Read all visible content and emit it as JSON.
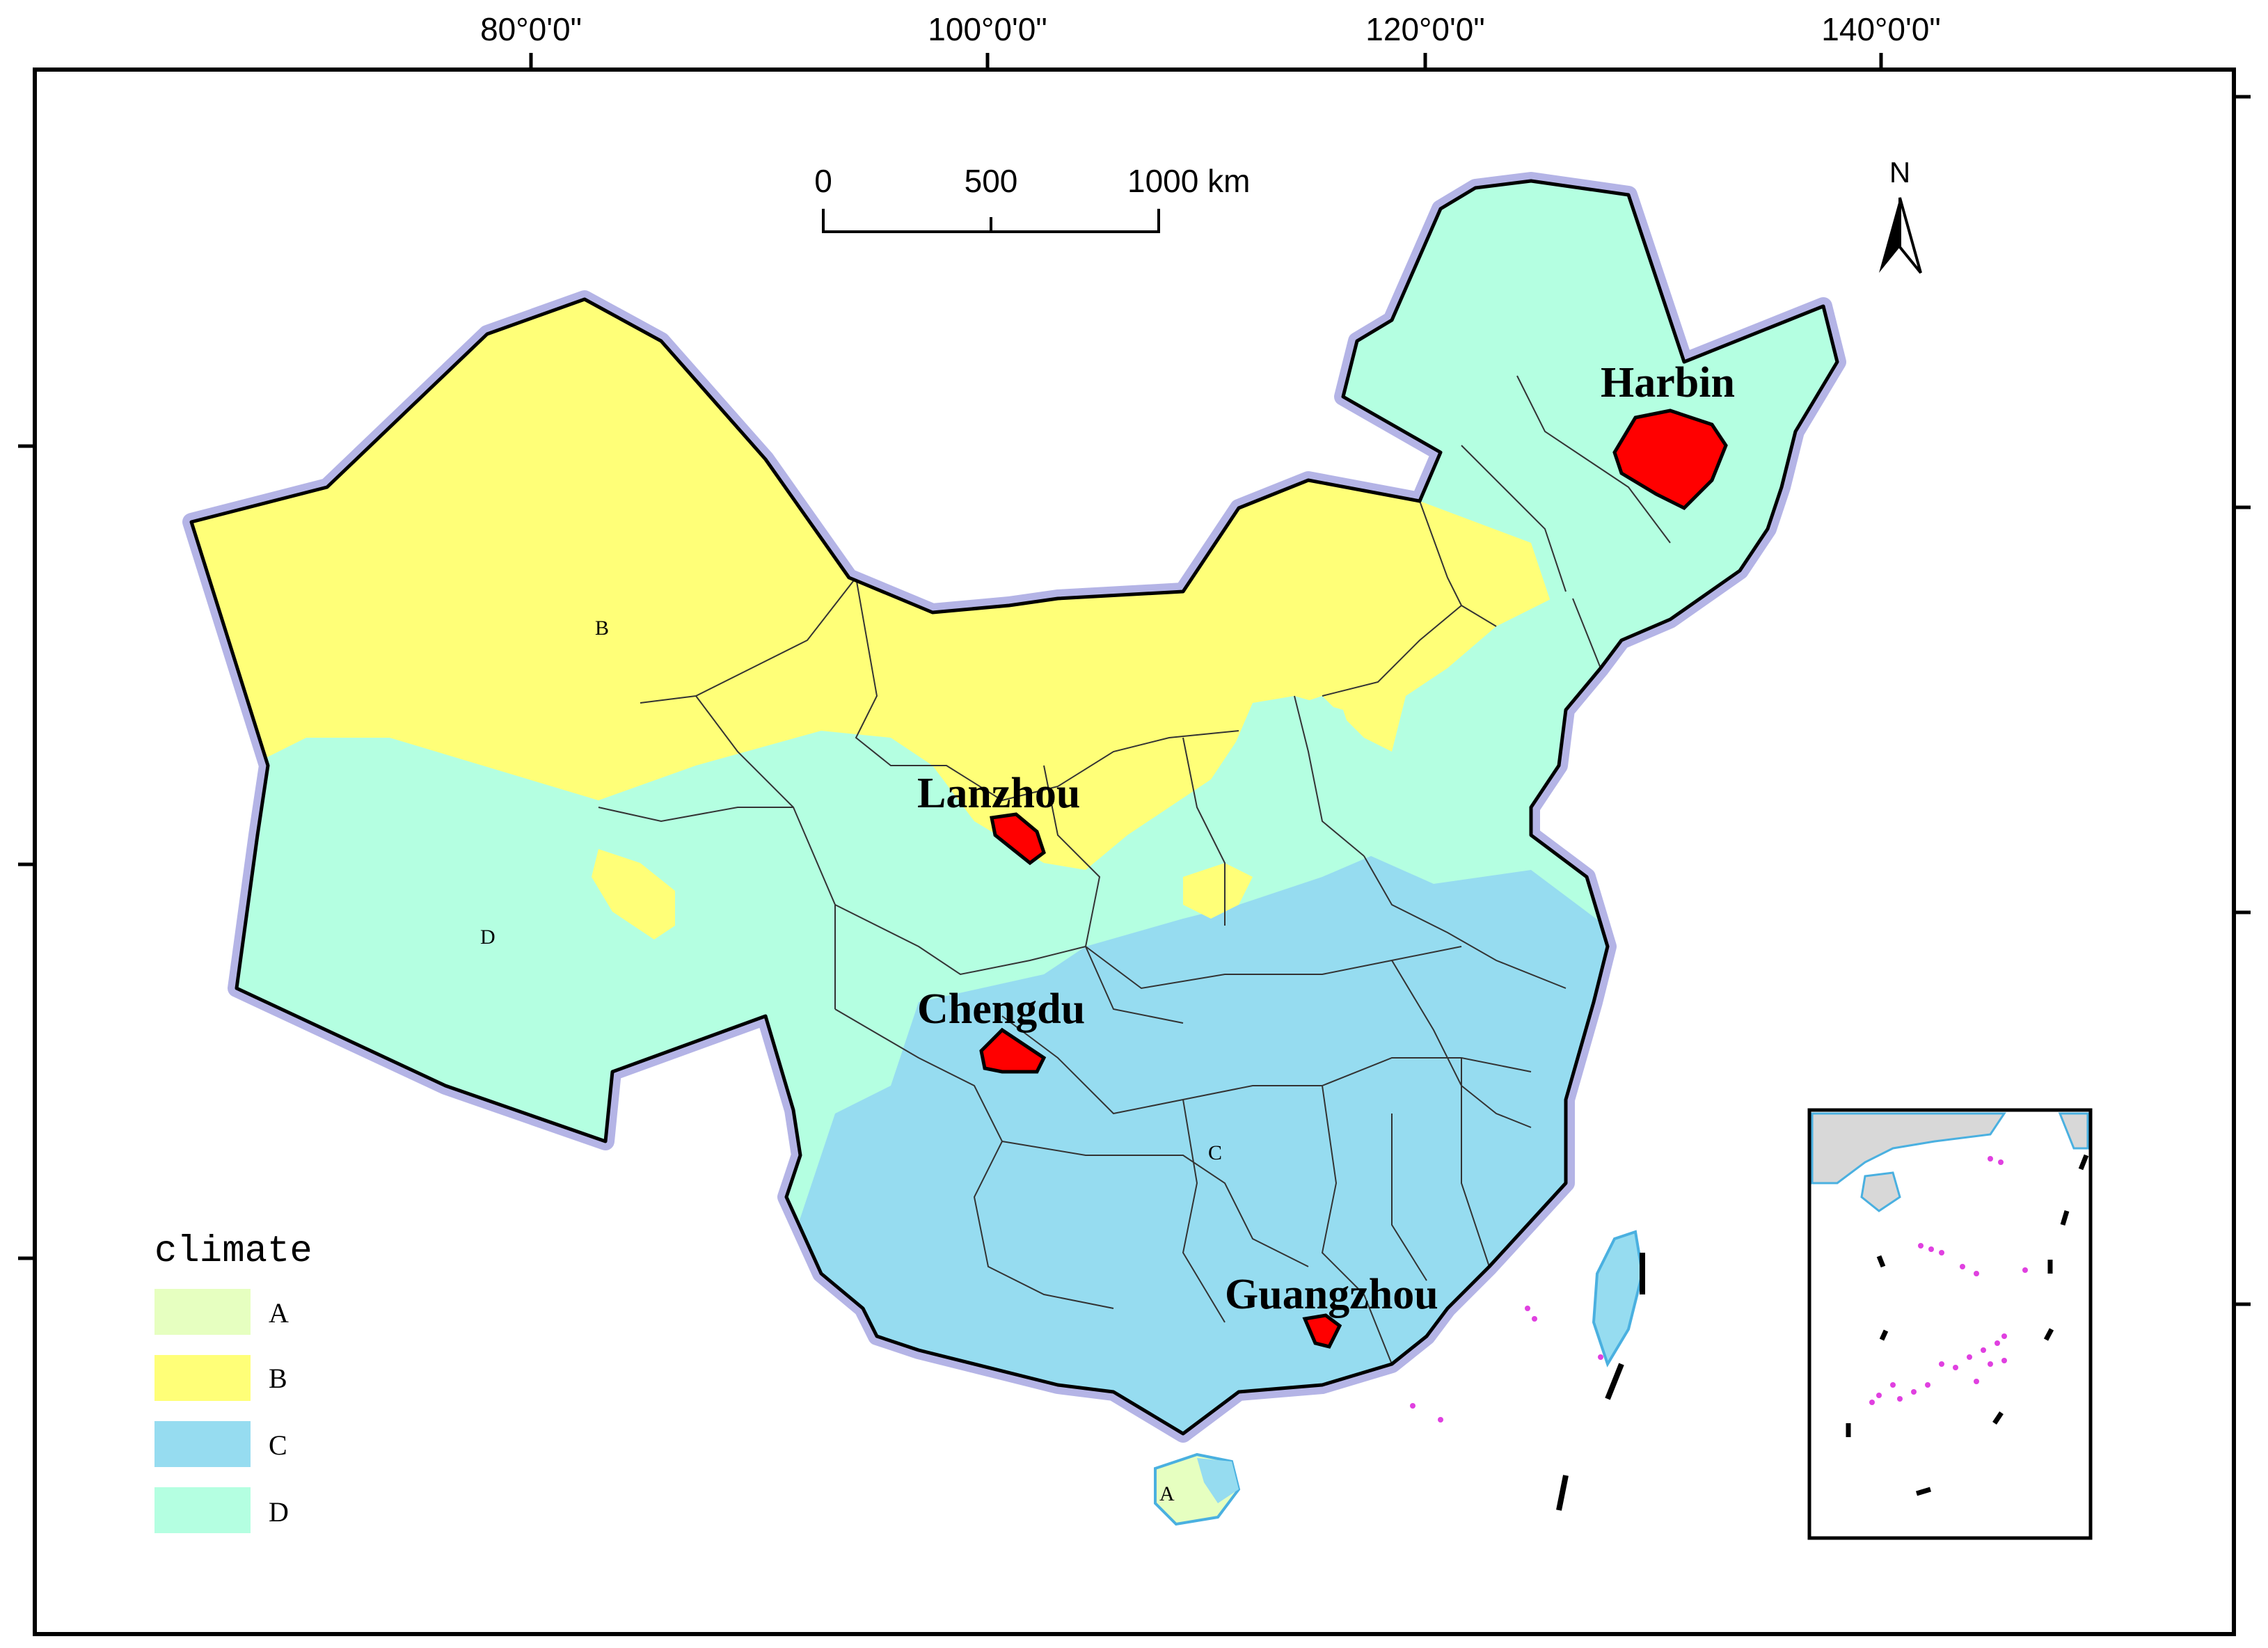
{
  "graticule": {
    "top_labels": [
      "80°0'0\"",
      "100°0'0\"",
      "120°0'0\"",
      "140°0'0\""
    ]
  },
  "scale_bar": {
    "labels": [
      "0",
      "500",
      "1000 km"
    ]
  },
  "north_arrow": {
    "label": "N"
  },
  "cities": {
    "harbin": "Harbin",
    "lanzhou": "Lanzhou",
    "chengdu": "Chengdu",
    "guangzhou": "Guangzhou"
  },
  "zones": {
    "b": "B",
    "d": "D",
    "c": "C",
    "a": "A"
  },
  "legend": {
    "title": "climate",
    "items": [
      {
        "label": "A",
        "color": "#e6ffc0"
      },
      {
        "label": "B",
        "color": "#ffff78"
      },
      {
        "label": "C",
        "color": "#96dcf0"
      },
      {
        "label": "D",
        "color": "#b4ffe1"
      }
    ]
  },
  "colors": {
    "city_fill": "#ff0000",
    "border_halo": "#b4b4e6",
    "inset_islands": "#e040e0"
  }
}
